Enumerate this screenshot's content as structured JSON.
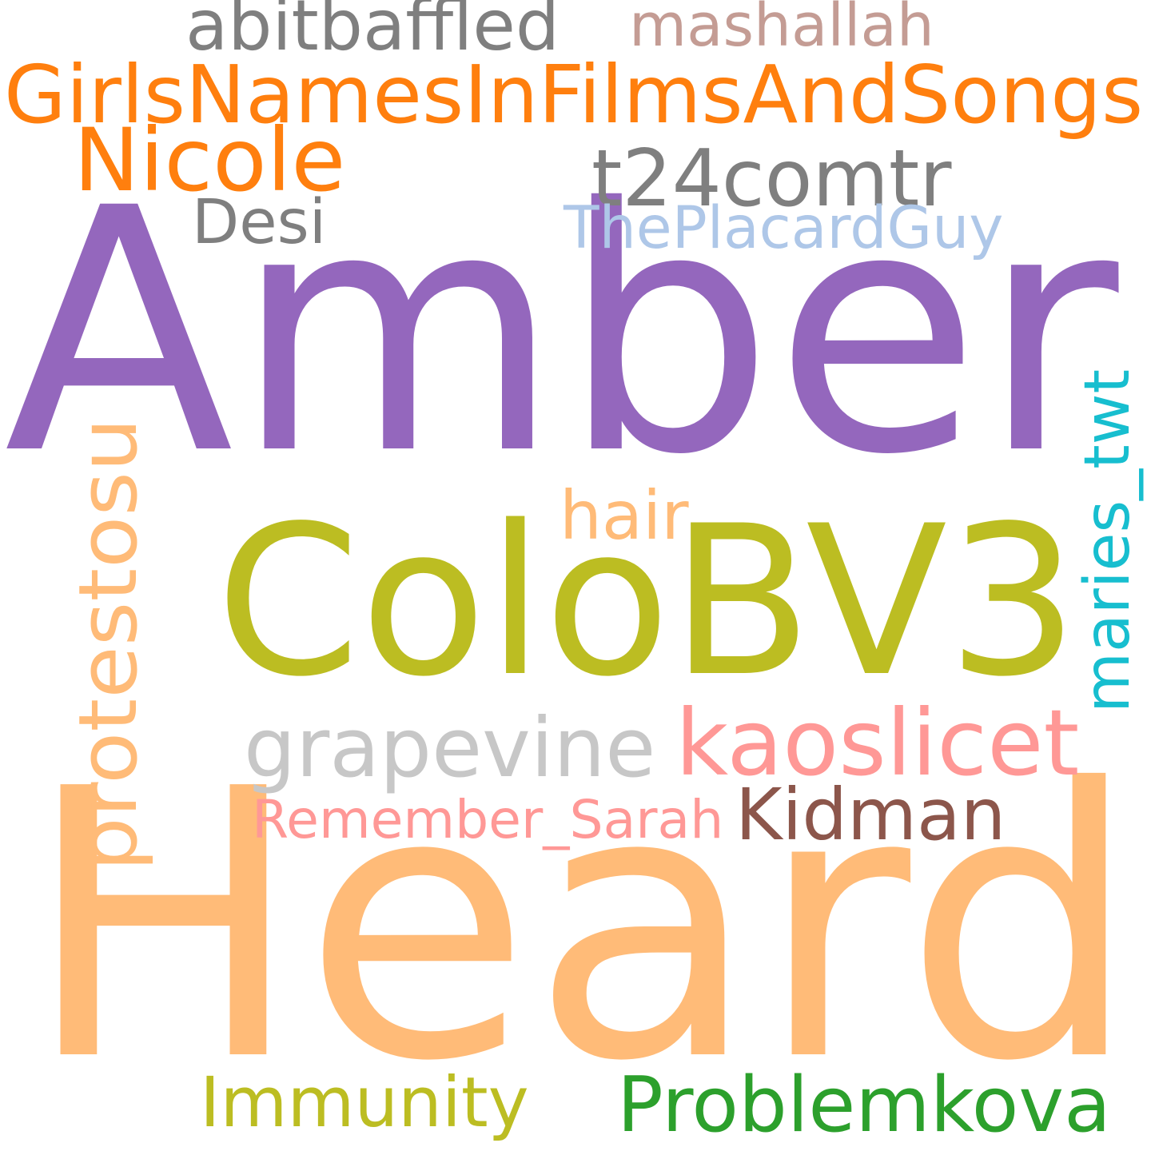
{
  "word_cloud": {
    "background": "#ffffff",
    "words": [
      {
        "text": "Amber",
        "color": "#9467bd",
        "orientation": "horizontal"
      },
      {
        "text": "Heard",
        "color": "#ffbb78",
        "orientation": "horizontal"
      },
      {
        "text": "ColoBV3",
        "color": "#bcbd22",
        "orientation": "horizontal"
      },
      {
        "text": "GirlsNamesInFilmsAndSongs",
        "color": "#ff7f0e",
        "orientation": "horizontal"
      },
      {
        "text": "Nicole",
        "color": "#ff7f0e",
        "orientation": "horizontal"
      },
      {
        "text": "t24comtr",
        "color": "#7f7f7f",
        "orientation": "horizontal"
      },
      {
        "text": "abitbaffled",
        "color": "#7f7f7f",
        "orientation": "horizontal"
      },
      {
        "text": "mashallah",
        "color": "#c49c94",
        "orientation": "horizontal"
      },
      {
        "text": "Desi",
        "color": "#7f7f7f",
        "orientation": "horizontal"
      },
      {
        "text": "ThePlacardGuy",
        "color": "#aec7e8",
        "orientation": "horizontal"
      },
      {
        "text": "protestosu",
        "color": "#ffbb78",
        "orientation": "vertical"
      },
      {
        "text": "maries_twt",
        "color": "#17becf",
        "orientation": "vertical"
      },
      {
        "text": "hair",
        "color": "#ffbb78",
        "orientation": "horizontal"
      },
      {
        "text": "grapevine",
        "color": "#c7c7c7",
        "orientation": "horizontal"
      },
      {
        "text": "kaoslicet",
        "color": "#ff9896",
        "orientation": "horizontal"
      },
      {
        "text": "Kidman",
        "color": "#8c564b",
        "orientation": "horizontal"
      },
      {
        "text": "Remember_Sarah",
        "color": "#ff9896",
        "orientation": "horizontal"
      },
      {
        "text": "Immunity",
        "color": "#bcbd22",
        "orientation": "horizontal"
      },
      {
        "text": "Problemkova",
        "color": "#2ca02c",
        "orientation": "horizontal"
      }
    ]
  }
}
